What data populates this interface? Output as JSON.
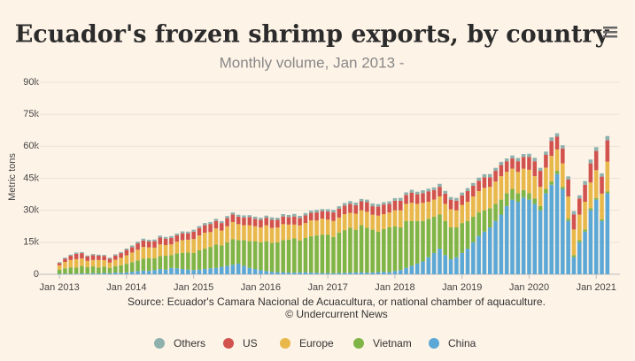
{
  "chart_data": {
    "type": "stacked-bar",
    "title": "Ecuador's frozen shrimp exports, by country",
    "subtitle": "Monthly volume, Jan 2013 -",
    "y_label": "Metric tons",
    "credits": [
      "Source: Ecuador's Camara Nacional de Acuacultura, or national chamber of aquaculture.",
      "© Undercurrent News"
    ],
    "ylim": [
      0,
      90000
    ],
    "yticks": [
      0,
      {
        "value": 15000,
        "label": "15k"
      },
      {
        "value": 30000,
        "label": "30k"
      },
      {
        "value": 45000,
        "label": "45k"
      },
      {
        "value": 60000,
        "label": "60k"
      },
      {
        "value": 75000,
        "label": "75k"
      },
      {
        "value": 90000,
        "label": "90k"
      }
    ],
    "grid": true,
    "categories": [
      "Jan 2013",
      null,
      null,
      null,
      null,
      null,
      null,
      null,
      null,
      null,
      null,
      null,
      "Jan 2014",
      null,
      null,
      null,
      null,
      null,
      null,
      null,
      null,
      null,
      null,
      null,
      "Jan 2015",
      null,
      null,
      null,
      null,
      null,
      null,
      null,
      null,
      null,
      null,
      null,
      "Jan 2016",
      null,
      null,
      null,
      null,
      null,
      null,
      null,
      null,
      null,
      null,
      null,
      "Jan 2017",
      null,
      null,
      null,
      null,
      null,
      null,
      null,
      null,
      null,
      null,
      null,
      "Jan 2018",
      null,
      null,
      null,
      null,
      null,
      null,
      null,
      null,
      null,
      null,
      null,
      "Jan 2019",
      null,
      null,
      null,
      null,
      null,
      null,
      null,
      null,
      null,
      null,
      null,
      "Jan 2020",
      null,
      null,
      null,
      null,
      null,
      null,
      null,
      null,
      null,
      null,
      null,
      "Jan 2021",
      null,
      null
    ],
    "series": [
      {
        "name": "China",
        "color": "#5ba8d6",
        "values": [
          200,
          300,
          200,
          300,
          400,
          300,
          500,
          400,
          600,
          500,
          800,
          700,
          900,
          1200,
          1500,
          1800,
          1600,
          2000,
          2500,
          2200,
          3000,
          2800,
          2500,
          2200,
          2000,
          2200,
          2500,
          2800,
          3000,
          3500,
          4000,
          4500,
          5000,
          4000,
          3000,
          2500,
          2000,
          1500,
          1200,
          1000,
          1000,
          800,
          800,
          900,
          1000,
          800,
          700,
          600,
          600,
          500,
          600,
          700,
          800,
          900,
          1000,
          800,
          900,
          1000,
          1200,
          1000,
          1500,
          2000,
          3000,
          4000,
          5000,
          6000,
          8000,
          10000,
          12000,
          9000,
          7000,
          8000,
          10000,
          12000,
          15000,
          18000,
          20000,
          22000,
          25000,
          28000,
          32000,
          35000,
          34000,
          36000,
          35000,
          33000,
          30000,
          38000,
          42000,
          47000,
          40000,
          25000,
          8000,
          15000,
          20000,
          30000,
          35000,
          25000,
          38000
        ]
      },
      {
        "name": "Vietnam",
        "color": "#7fb446",
        "values": [
          2000,
          2500,
          3000,
          2800,
          3500,
          3000,
          3200,
          2800,
          3000,
          2500,
          3000,
          3500,
          4000,
          4500,
          5000,
          5500,
          6000,
          5500,
          6000,
          6500,
          6000,
          7000,
          7500,
          8000,
          8000,
          9000,
          9500,
          10000,
          11000,
          10000,
          11000,
          12000,
          11000,
          12000,
          12500,
          13000,
          13000,
          14000,
          13500,
          14000,
          15000,
          15500,
          16000,
          15000,
          16000,
          17000,
          17500,
          18000,
          18000,
          17000,
          19000,
          20000,
          21000,
          20000,
          22000,
          21000,
          20000,
          19000,
          20000,
          21000,
          21000,
          20000,
          22000,
          21000,
          20000,
          19000,
          18000,
          17000,
          16000,
          16000,
          15000,
          14000,
          14000,
          13000,
          12000,
          11000,
          10000,
          9000,
          8000,
          7000,
          6000,
          5000,
          4000,
          3500,
          3000,
          2500,
          2000,
          2000,
          1500,
          1500,
          1000,
          1000,
          1000,
          1000,
          1000,
          1000,
          800,
          800,
          800
        ]
      },
      {
        "name": "Europe",
        "color": "#e8b84a",
        "values": [
          2000,
          3000,
          3500,
          4000,
          3500,
          3000,
          3000,
          3500,
          3000,
          2500,
          3000,
          3500,
          4000,
          4500,
          5000,
          5500,
          5000,
          5000,
          5500,
          5000,
          5000,
          5500,
          6000,
          6000,
          6500,
          7000,
          7500,
          7000,
          7500,
          7000,
          7500,
          8000,
          7500,
          7000,
          7500,
          7000,
          7000,
          7500,
          7000,
          7000,
          7500,
          7000,
          6500,
          7000,
          7000,
          7500,
          7000,
          7500,
          7000,
          7500,
          7000,
          7500,
          7000,
          7500,
          7000,
          7500,
          7000,
          7500,
          7000,
          7000,
          7500,
          8000,
          8000,
          8500,
          8000,
          8500,
          8000,
          8000,
          8500,
          8000,
          8500,
          8000,
          8500,
          9000,
          9500,
          10000,
          10500,
          10000,
          10500,
          11000,
          10000,
          9500,
          10000,
          10000,
          11000,
          10500,
          9000,
          10000,
          12000,
          10000,
          11000,
          10500,
          12000,
          12000,
          13000,
          12000,
          13000,
          12000,
          14000
        ]
      },
      {
        "name": "US",
        "color": "#d2524e",
        "values": [
          1000,
          1500,
          2000,
          2500,
          2500,
          2000,
          2200,
          2000,
          2000,
          1800,
          2000,
          2200,
          2500,
          2500,
          3000,
          3000,
          2800,
          3000,
          3200,
          3000,
          3000,
          3000,
          3200,
          3000,
          3500,
          3500,
          3500,
          3800,
          3500,
          3500,
          3800,
          3500,
          3500,
          3600,
          3800,
          3500,
          3500,
          3500,
          3800,
          3500,
          3600,
          3500,
          3800,
          3500,
          3600,
          3500,
          3800,
          3500,
          3800,
          4000,
          4200,
          4000,
          4200,
          4000,
          4200,
          4500,
          4000,
          4200,
          4500,
          4000,
          4500,
          4500,
          4200,
          4800,
          4500,
          4500,
          4800,
          4500,
          4500,
          4800,
          4500,
          4500,
          4500,
          5000,
          5000,
          4800,
          5000,
          4500,
          5000,
          5200,
          5000,
          4800,
          5000,
          5500,
          6000,
          7000,
          7500,
          6000,
          7000,
          6000,
          7000,
          8000,
          7000,
          7500,
          8000,
          9000,
          9000,
          8000,
          10000
        ]
      },
      {
        "name": "Others",
        "color": "#8eb1ad",
        "values": [
          500,
          500,
          500,
          600,
          500,
          500,
          600,
          500,
          500,
          500,
          600,
          500,
          700,
          800,
          800,
          900,
          800,
          800,
          900,
          800,
          900,
          800,
          900,
          800,
          900,
          900,
          1000,
          900,
          1000,
          900,
          1000,
          1000,
          900,
          1000,
          900,
          1000,
          1000,
          1000,
          1200,
          1000,
          1100,
          1000,
          1200,
          1000,
          1100,
          1000,
          1200,
          1000,
          1100,
          1200,
          1100,
          1200,
          1300,
          1200,
          1100,
          1200,
          1300,
          1200,
          1100,
          1200,
          1200,
          1300,
          1200,
          1300,
          1200,
          1400,
          1300,
          1200,
          1400,
          1300,
          1200,
          1300,
          1300,
          1400,
          1300,
          1500,
          1400,
          1500,
          1400,
          1500,
          1300,
          1400,
          1500,
          1400,
          1500,
          1600,
          1400,
          1500,
          1700,
          1600,
          1500,
          1400,
          1600,
          1500,
          1700,
          1800,
          1800,
          1500,
          2000
        ]
      }
    ]
  }
}
